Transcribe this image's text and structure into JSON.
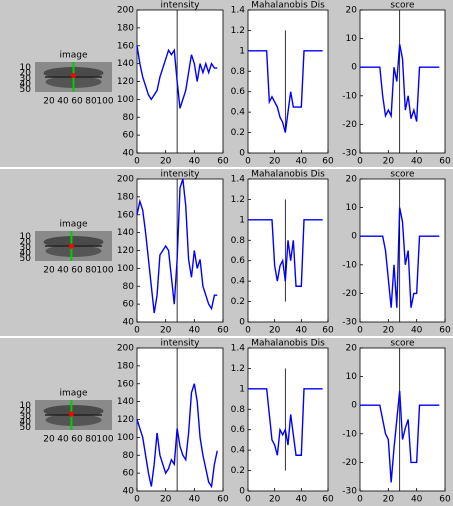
{
  "chart_data": [
    {
      "type": "image",
      "title": "image",
      "xlim": [
        0,
        110
      ],
      "ylim": [
        0,
        55
      ],
      "xticks": [
        20,
        40,
        60,
        80,
        100
      ],
      "yticks": [
        10,
        20,
        30,
        40,
        50
      ],
      "marker_x": 55,
      "marker_y": 25
    },
    {
      "type": "line",
      "title": "intensity",
      "xlim": [
        0,
        60
      ],
      "ylim": [
        40,
        200
      ],
      "xticks": [
        0,
        20,
        40,
        60
      ],
      "yticks": [
        40,
        60,
        80,
        100,
        120,
        140,
        160,
        180,
        200
      ],
      "color": "#0000ff",
      "vline": {
        "x": 28
      },
      "x": [
        0,
        2,
        4,
        6,
        8,
        10,
        12,
        14,
        16,
        18,
        20,
        22,
        24,
        26,
        28,
        30,
        32,
        34,
        36,
        38,
        40,
        42,
        44,
        46,
        48,
        50,
        52,
        54,
        56
      ],
      "values": [
        160,
        140,
        125,
        115,
        105,
        100,
        105,
        110,
        125,
        135,
        145,
        155,
        150,
        155,
        120,
        90,
        100,
        110,
        130,
        150,
        140,
        120,
        140,
        130,
        140,
        130,
        140,
        135,
        135
      ]
    },
    {
      "type": "line",
      "title": "Mahalanobis Dis",
      "xlim": [
        0,
        60
      ],
      "ylim": [
        0,
        1.4
      ],
      "xticks": [
        0,
        20,
        40,
        60
      ],
      "yticks": [
        0,
        0.2,
        0.4,
        0.6,
        0.8,
        1,
        1.2,
        1.4
      ],
      "color": "#0000ff",
      "vline": {
        "x": 28,
        "y": [
          0.2,
          1.2
        ]
      },
      "x": [
        0,
        2,
        4,
        6,
        8,
        10,
        12,
        14,
        16,
        18,
        20,
        22,
        24,
        26,
        28,
        30,
        32,
        34,
        36,
        38,
        40,
        42,
        44,
        46,
        48,
        50,
        52,
        54,
        56
      ],
      "values": [
        1,
        1,
        1,
        1,
        1,
        1,
        1,
        1,
        0.5,
        0.55,
        0.5,
        0.45,
        0.35,
        0.3,
        0.2,
        0.4,
        0.6,
        0.45,
        0.45,
        0.45,
        0.45,
        1,
        1,
        1,
        1,
        1,
        1,
        1,
        1
      ]
    },
    {
      "type": "line",
      "title": "score",
      "xlim": [
        0,
        60
      ],
      "ylim": [
        -30,
        20
      ],
      "xticks": [
        0,
        20,
        40,
        60
      ],
      "yticks": [
        -30,
        -20,
        -10,
        0,
        10,
        20
      ],
      "color": "#0000ff",
      "vline": {
        "x": 28
      },
      "x": [
        0,
        2,
        4,
        6,
        8,
        10,
        12,
        14,
        16,
        18,
        20,
        22,
        24,
        26,
        28,
        30,
        32,
        34,
        36,
        38,
        40,
        42,
        44,
        46,
        48,
        50,
        52,
        54,
        56
      ],
      "values": [
        0,
        0,
        0,
        0,
        0,
        0,
        0,
        0,
        -10,
        -17,
        -15,
        -17,
        0,
        -5,
        8,
        3,
        -15,
        -10,
        -18,
        -15,
        -19,
        0,
        0,
        0,
        0,
        0,
        0,
        0,
        0
      ]
    },
    {
      "type": "image",
      "title": "image",
      "xlim": [
        0,
        110
      ],
      "ylim": [
        0,
        55
      ],
      "xticks": [
        20,
        40,
        60,
        80,
        100
      ],
      "yticks": [
        10,
        20,
        30,
        40,
        50
      ],
      "marker_x": 52,
      "marker_y": 28
    },
    {
      "type": "line",
      "title": "intensity",
      "xlim": [
        0,
        60
      ],
      "ylim": [
        40,
        200
      ],
      "xticks": [
        0,
        20,
        40,
        60
      ],
      "yticks": [
        40,
        60,
        80,
        100,
        120,
        140,
        160,
        180,
        200
      ],
      "color": "#0000ff",
      "vline": {
        "x": 28
      },
      "x": [
        0,
        2,
        4,
        6,
        8,
        10,
        12,
        14,
        16,
        18,
        20,
        22,
        24,
        26,
        28,
        30,
        32,
        34,
        36,
        38,
        40,
        42,
        44,
        46,
        48,
        50,
        52,
        54,
        56
      ],
      "values": [
        160,
        175,
        165,
        140,
        110,
        80,
        50,
        70,
        115,
        120,
        125,
        120,
        90,
        60,
        110,
        190,
        200,
        170,
        110,
        90,
        120,
        100,
        110,
        80,
        70,
        60,
        55,
        70,
        70
      ]
    },
    {
      "type": "line",
      "title": "Mahalanobis Dis",
      "xlim": [
        0,
        60
      ],
      "ylim": [
        0,
        1.4
      ],
      "xticks": [
        0,
        20,
        40,
        60
      ],
      "yticks": [
        0,
        0.2,
        0.4,
        0.6,
        0.8,
        1,
        1.2,
        1.4
      ],
      "color": "#0000ff",
      "vline": {
        "x": 28,
        "y": [
          0.2,
          1.2
        ]
      },
      "x": [
        0,
        2,
        4,
        6,
        8,
        10,
        12,
        14,
        16,
        18,
        20,
        22,
        24,
        26,
        28,
        30,
        32,
        34,
        36,
        38,
        40,
        42,
        44,
        46,
        48,
        50,
        52,
        54,
        56
      ],
      "values": [
        1,
        1,
        1,
        1,
        1,
        1,
        1,
        1,
        1,
        1,
        0.55,
        0.4,
        0.55,
        0.6,
        0.4,
        0.8,
        0.6,
        0.8,
        0.35,
        0.35,
        0.35,
        1,
        1,
        1,
        1,
        1,
        1,
        1,
        1
      ]
    },
    {
      "type": "line",
      "title": "score",
      "xlim": [
        0,
        60
      ],
      "ylim": [
        -30,
        20
      ],
      "xticks": [
        0,
        20,
        40,
        60
      ],
      "yticks": [
        -30,
        -20,
        -10,
        0,
        10,
        20
      ],
      "color": "#0000ff",
      "vline": {
        "x": 28
      },
      "x": [
        0,
        2,
        4,
        6,
        8,
        10,
        12,
        14,
        16,
        18,
        20,
        22,
        24,
        26,
        28,
        30,
        32,
        34,
        36,
        38,
        40,
        42,
        44,
        46,
        48,
        50,
        52,
        54,
        56
      ],
      "values": [
        0,
        0,
        0,
        0,
        0,
        0,
        0,
        0,
        0,
        -5,
        -15,
        -25,
        -10,
        -25,
        10,
        5,
        -10,
        -5,
        -25,
        -20,
        -20,
        0,
        0,
        0,
        0,
        0,
        0,
        0,
        0
      ]
    },
    {
      "type": "image",
      "title": "image",
      "xlim": [
        0,
        110
      ],
      "ylim": [
        0,
        55
      ],
      "xticks": [
        20,
        40,
        60,
        80,
        100
      ],
      "yticks": [
        10,
        20,
        30,
        40,
        50
      ],
      "marker_x": 52,
      "marker_y": 26
    },
    {
      "type": "line",
      "title": "intensity",
      "xlim": [
        0,
        60
      ],
      "ylim": [
        40,
        200
      ],
      "xticks": [
        0,
        20,
        40,
        60
      ],
      "yticks": [
        40,
        60,
        80,
        100,
        120,
        140,
        160,
        180,
        200
      ],
      "color": "#0000ff",
      "vline": {
        "x": 28
      },
      "x": [
        0,
        2,
        4,
        6,
        8,
        10,
        12,
        14,
        16,
        18,
        20,
        22,
        24,
        26,
        28,
        30,
        32,
        34,
        36,
        38,
        40,
        42,
        44,
        46,
        48,
        50,
        52,
        54,
        56
      ],
      "values": [
        120,
        110,
        100,
        80,
        60,
        45,
        70,
        105,
        80,
        70,
        60,
        65,
        75,
        70,
        110,
        90,
        80,
        75,
        105,
        150,
        160,
        140,
        100,
        80,
        65,
        50,
        45,
        70,
        85
      ]
    },
    {
      "type": "line",
      "title": "Mahalanobis Dis",
      "xlim": [
        0,
        60
      ],
      "ylim": [
        0,
        1.4
      ],
      "xticks": [
        0,
        20,
        40,
        60
      ],
      "yticks": [
        0,
        0.2,
        0.4,
        0.6,
        0.8,
        1,
        1.2,
        1.4
      ],
      "color": "#0000ff",
      "vline": {
        "x": 28,
        "y": [
          0.2,
          1.2
        ]
      },
      "x": [
        0,
        2,
        4,
        6,
        8,
        10,
        12,
        14,
        16,
        18,
        20,
        22,
        24,
        26,
        28,
        30,
        32,
        34,
        36,
        38,
        40,
        42,
        44,
        46,
        48,
        50,
        52,
        54,
        56
      ],
      "values": [
        1,
        1,
        1,
        1,
        1,
        1,
        1,
        1,
        0.75,
        0.5,
        0.45,
        0.35,
        0.6,
        0.55,
        0.6,
        0.45,
        0.75,
        0.55,
        0.35,
        0.35,
        0.35,
        1,
        1,
        1,
        1,
        1,
        1,
        1,
        1
      ]
    },
    {
      "type": "line",
      "title": "score",
      "xlim": [
        0,
        60
      ],
      "ylim": [
        -30,
        20
      ],
      "xticks": [
        0,
        20,
        40,
        60
      ],
      "yticks": [
        -30,
        -20,
        -10,
        0,
        10,
        20
      ],
      "color": "#0000ff",
      "vline": {
        "x": 28
      },
      "x": [
        0,
        2,
        4,
        6,
        8,
        10,
        12,
        14,
        16,
        18,
        20,
        22,
        24,
        26,
        28,
        30,
        32,
        34,
        36,
        38,
        40,
        42,
        44,
        46,
        48,
        50,
        52,
        54,
        56
      ],
      "values": [
        0,
        0,
        0,
        0,
        0,
        0,
        0,
        0,
        -5,
        -10,
        -12,
        -27,
        -15,
        -5,
        5,
        -12,
        -8,
        -5,
        -20,
        -20,
        -20,
        0,
        0,
        0,
        0,
        0,
        0,
        0,
        0
      ]
    }
  ]
}
